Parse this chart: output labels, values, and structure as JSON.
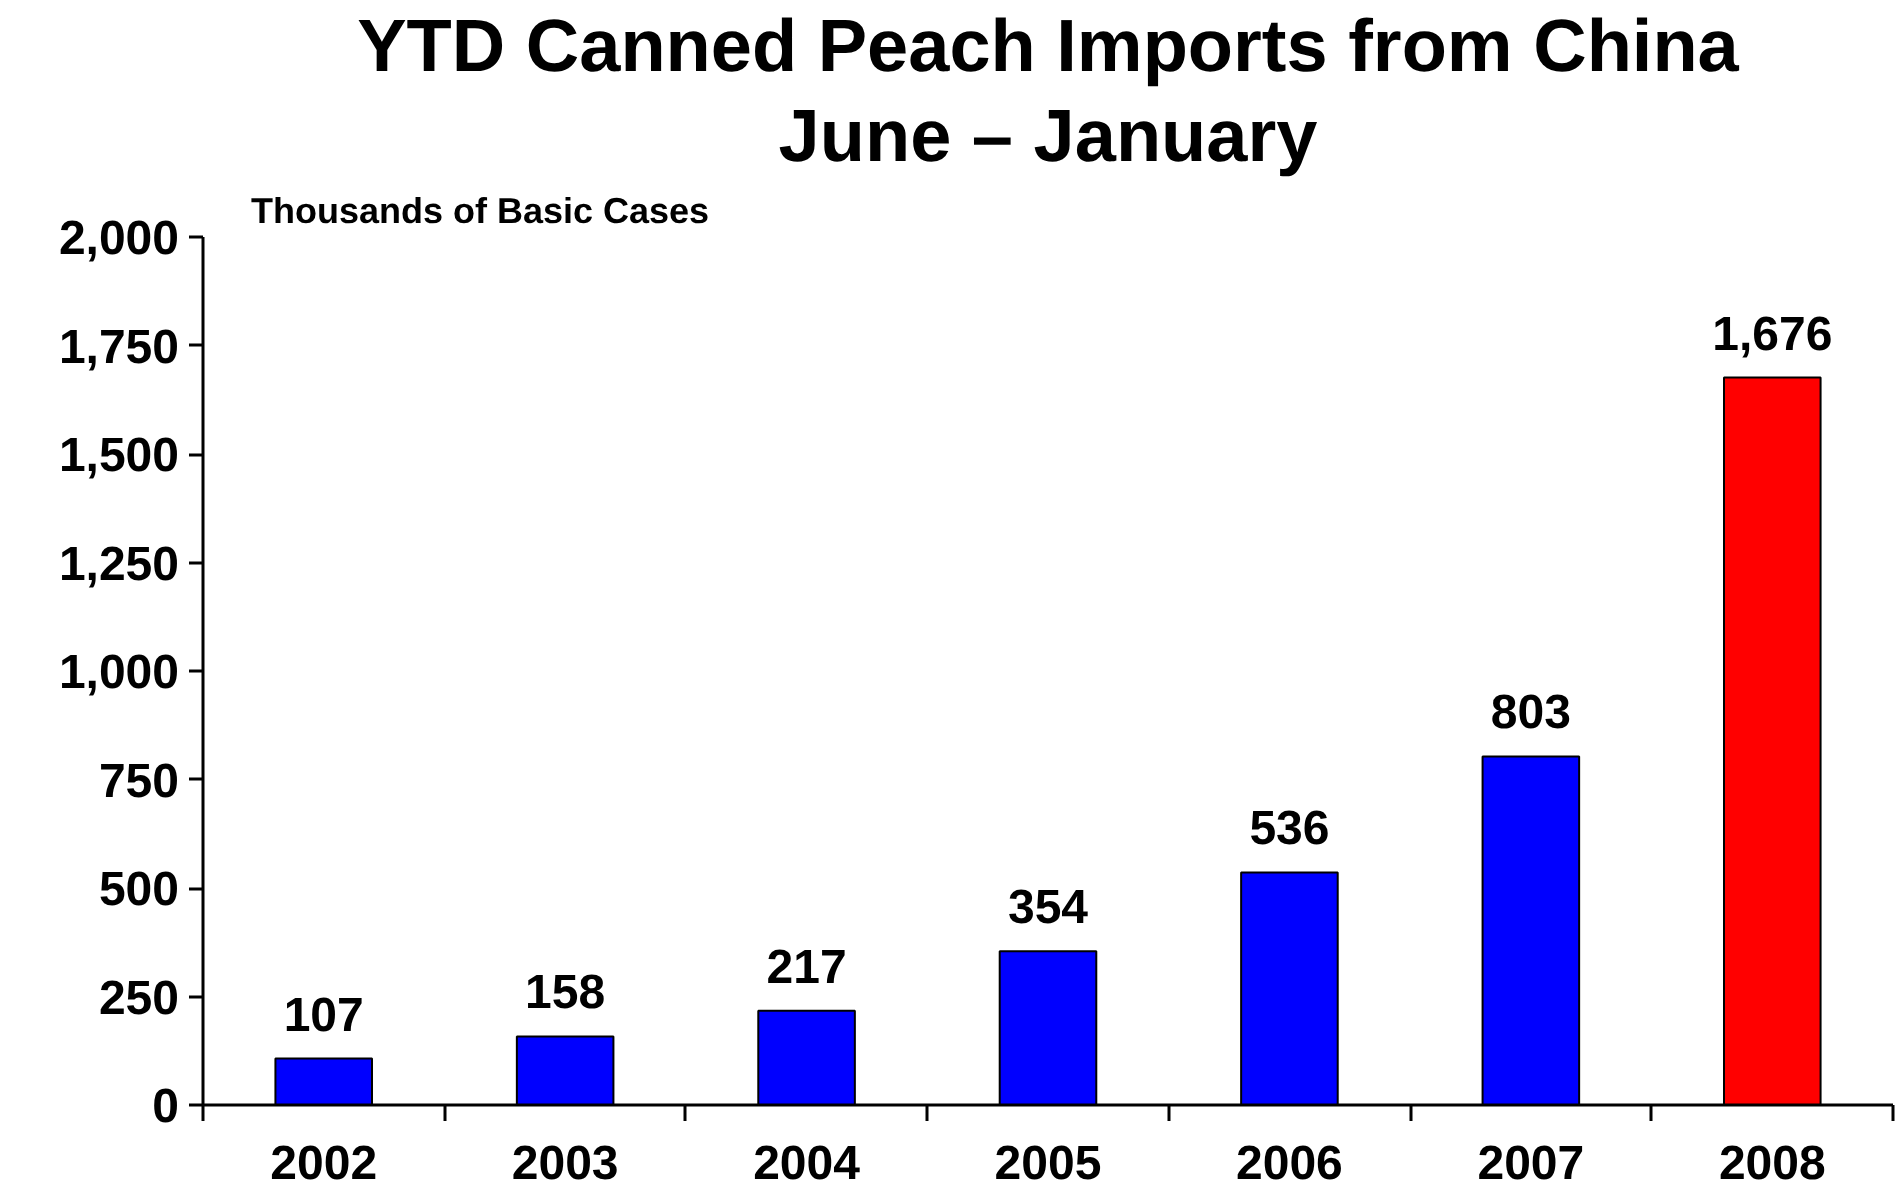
{
  "chart_data": {
    "type": "bar",
    "title": "YTD Canned Peach Imports from China",
    "subtitle": "June – January",
    "ylabel": "Thousands of Basic Cases",
    "categories": [
      "2002",
      "2003",
      "2004",
      "2005",
      "2006",
      "2007",
      "2008"
    ],
    "values": [
      107,
      158,
      217,
      354,
      536,
      803,
      1676
    ],
    "colors": [
      "#0000ff",
      "#0000ff",
      "#0000ff",
      "#0000ff",
      "#0000ff",
      "#0000ff",
      "#ff0000"
    ],
    "value_labels": [
      "107",
      "158",
      "217",
      "354",
      "536",
      "803",
      "1,676"
    ],
    "ylim": [
      0,
      2000
    ],
    "yticks": [
      0,
      250,
      500,
      750,
      {
        "value": 1000,
        "label": "1,000"
      },
      {
        "value": 1250,
        "label": "1,250"
      },
      {
        "value": 1500,
        "label": "1,500"
      },
      {
        "value": 1750,
        "label": "1,750"
      },
      {
        "value": 2000,
        "label": "2,000"
      }
    ]
  }
}
